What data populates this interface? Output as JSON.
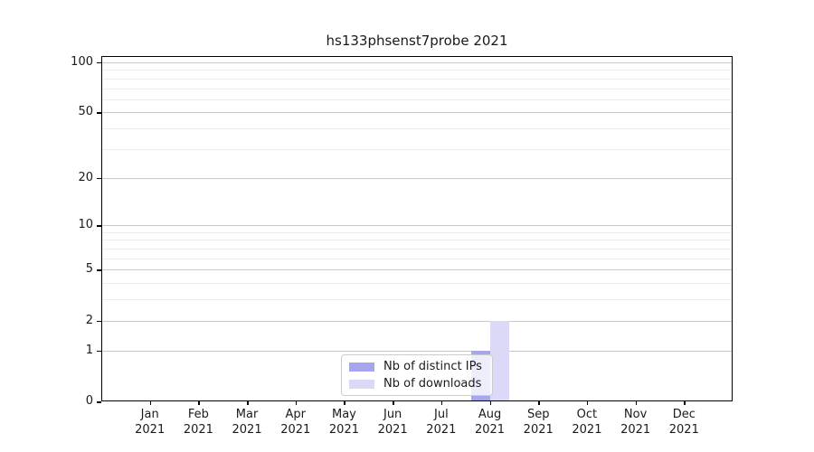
{
  "title": "hs133phsenst7probe 2021",
  "chart_data": {
    "type": "bar",
    "title": "hs133phsenst7probe 2021",
    "categories": [
      "Jan",
      "Feb",
      "Mar",
      "Apr",
      "May",
      "Jun",
      "Jul",
      "Aug",
      "Sep",
      "Oct",
      "Nov",
      "Dec"
    ],
    "year": "2021",
    "series": [
      {
        "name": "Nb of distinct IPs",
        "color": "#a6a6ee",
        "values": [
          0,
          0,
          0,
          0,
          0,
          0,
          0,
          1,
          0,
          0,
          0,
          0
        ]
      },
      {
        "name": "Nb of downloads",
        "color": "#dadaf8",
        "values": [
          0,
          0,
          0,
          0,
          0,
          0,
          0,
          2,
          0,
          0,
          0,
          0
        ]
      }
    ],
    "y_axis": {
      "scale": "log1p",
      "ticks": [
        0,
        1,
        2,
        5,
        10,
        20,
        50,
        100
      ],
      "minor_ticks": [
        3,
        4,
        6,
        7,
        8,
        9,
        30,
        40,
        60,
        70,
        80,
        90
      ],
      "max": 109
    },
    "x_axis": {
      "label_line2": "2021"
    },
    "legend": {
      "position": "lower center",
      "entries": [
        "Nb of distinct IPs",
        "Nb of downloads"
      ]
    },
    "grid": "horizontal",
    "colors": {
      "major_grid": "#c9c9c9",
      "minor_grid": "#ececec",
      "frame": "#000000",
      "background": "#ffffff"
    }
  }
}
